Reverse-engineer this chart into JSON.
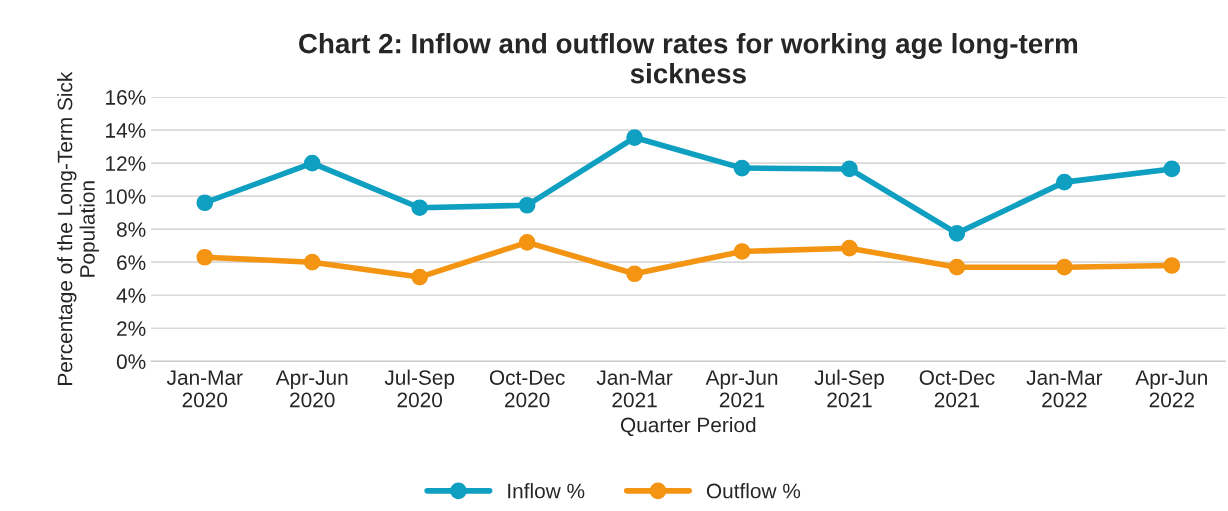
{
  "chart_data": {
    "type": "line",
    "title": "Chart 2: Inflow and outflow rates for working age long-term\nsickness",
    "xlabel": "Quarter Period",
    "ylabel": "Percentage of the Long-Term Sick\nPopulation",
    "categories": [
      "Jan-Mar\n2020",
      "Apr-Jun\n2020",
      "Jul-Sep\n2020",
      "Oct-Dec\n2020",
      "Jan-Mar\n2021",
      "Apr-Jun\n2021",
      "Jul-Sep\n2021",
      "Oct-Dec\n2021",
      "Jan-Mar\n2022",
      "Apr-Jun\n2022"
    ],
    "series": [
      {
        "name": "Inflow %",
        "color": "#0e9fc1",
        "values": [
          9.6,
          12.0,
          9.3,
          9.45,
          13.55,
          11.7,
          11.65,
          7.75,
          10.85,
          11.65
        ]
      },
      {
        "name": "Outflow %",
        "color": "#f39412",
        "values": [
          6.3,
          6.0,
          5.1,
          7.2,
          5.3,
          6.65,
          6.85,
          5.7,
          5.7,
          5.8
        ]
      }
    ],
    "ylim": [
      0,
      16
    ],
    "yticks": [
      {
        "value": 0,
        "label": "0%"
      },
      {
        "value": 2,
        "label": "2%"
      },
      {
        "value": 4,
        "label": "4%"
      },
      {
        "value": 6,
        "label": "6%"
      },
      {
        "value": 8,
        "label": "8%"
      },
      {
        "value": 10,
        "label": "10%"
      },
      {
        "value": 12,
        "label": "12%"
      },
      {
        "value": 14,
        "label": "14%"
      },
      {
        "value": 16,
        "label": "16%"
      }
    ],
    "grid": "y",
    "legend": "bottom",
    "marker": "circle",
    "line_style": "solid"
  }
}
